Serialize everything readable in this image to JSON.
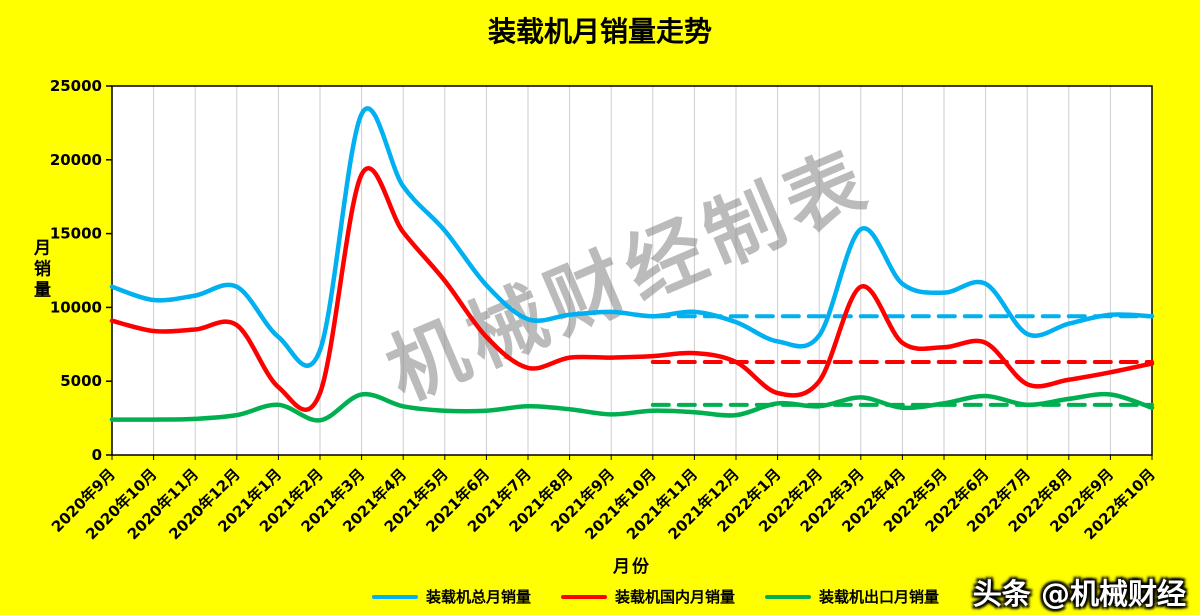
{
  "title": "装载机月销量走势",
  "watermark": "机械财经制表",
  "footer_brand": "头条 @机械财经",
  "colors": {
    "background": "#FFFF00",
    "plot_background": "#FFFFFF",
    "grid": "#CCCCCC",
    "axis": "#000000",
    "watermark": "rgba(120,120,120,0.5)"
  },
  "chart_data": {
    "type": "line",
    "title": "装载机月销量走势",
    "xlabel": "月份",
    "ylabel": "月销量",
    "ylim": [
      0,
      25000
    ],
    "ytick_step": 5000,
    "grid": "vertical",
    "legend_position": "bottom",
    "categories": [
      "2020年9月",
      "2020年10月",
      "2020年11月",
      "2020年12月",
      "2021年1月",
      "2021年2月",
      "2021年3月",
      "2021年4月",
      "2021年5月",
      "2021年6月",
      "2021年7月",
      "2021年8月",
      "2021年9月",
      "2021年10月",
      "2021年11月",
      "2021年12月",
      "2022年1月",
      "2022年2月",
      "2022年3月",
      "2022年4月",
      "2022年5月",
      "2022年6月",
      "2022年7月",
      "2022年8月",
      "2022年9月",
      "2022年10月"
    ],
    "series": [
      {
        "name": "装载机总月销量",
        "color": "#00B0F0",
        "values": [
          11400,
          10500,
          10800,
          11400,
          8000,
          7100,
          23100,
          18200,
          15200,
          11500,
          9200,
          9500,
          9700,
          9400,
          9700,
          9000,
          7700,
          8100,
          15300,
          11600,
          11000,
          11600,
          8200,
          8900,
          9500,
          9400
        ]
      },
      {
        "name": "装载机国内月销量",
        "color": "#FF0000",
        "values": [
          9100,
          8400,
          8500,
          8800,
          4600,
          4200,
          19000,
          15100,
          11800,
          8000,
          5900,
          6600,
          6600,
          6700,
          6900,
          6300,
          4200,
          5000,
          11400,
          7600,
          7300,
          7600,
          4800,
          5100,
          5600,
          6200
        ]
      },
      {
        "name": "装载机出口月销量",
        "color": "#00B050",
        "values": [
          2400,
          2400,
          2450,
          2700,
          3400,
          2350,
          4100,
          3300,
          3000,
          3000,
          3300,
          3100,
          2750,
          3000,
          2900,
          2700,
          3500,
          3300,
          3900,
          3200,
          3500,
          4000,
          3400,
          3800,
          4100,
          3200
        ]
      }
    ],
    "reference_lines": [
      {
        "name": "总月销量均值虚线",
        "color": "#00B0F0",
        "value": 9400,
        "start_category": "2021年10月"
      },
      {
        "name": "国内月销量均值虚线",
        "color": "#FF0000",
        "value": 6300,
        "start_category": "2021年10月"
      },
      {
        "name": "出口月销量均值虚线",
        "color": "#00B050",
        "value": 3400,
        "start_category": "2021年10月"
      }
    ]
  }
}
